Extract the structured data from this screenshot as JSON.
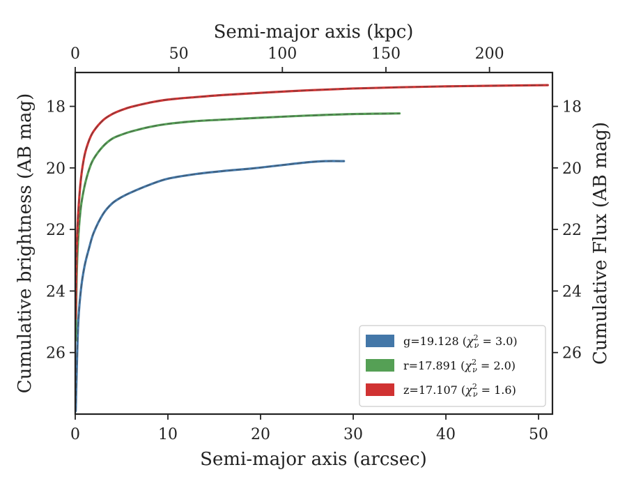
{
  "chart_data": {
    "type": "line",
    "xlabel": "Semi-major axis (arcsec)",
    "x2label": "Semi-major axis (kpc)",
    "ylabel": "Cumulative brightness (AB mag)",
    "y2label": "Cumulative Flux (AB mag)",
    "xlim": [
      0,
      51.5
    ],
    "x_ticks": [
      0,
      10,
      20,
      30,
      40,
      50
    ],
    "x2lim": [
      0,
      230.4
    ],
    "x2_ticks": [
      0,
      50,
      100,
      150,
      200
    ],
    "ylim": [
      16.9,
      28.0
    ],
    "y_inverted": true,
    "y_ticks": [
      18,
      20,
      22,
      24,
      26
    ],
    "grid": false,
    "legend_position": "lower-right",
    "series": [
      {
        "key": "g",
        "name": "g=19.128 (χ²ν = 3.0)",
        "legend_main": "g=19.128 (",
        "legend_sym": "χ",
        "legend_sup": "2",
        "legend_sub": "ν",
        "legend_tail": " = 3.0)",
        "color": "#4377a8",
        "x": [
          0.05,
          0.3,
          0.6,
          1.0,
          1.5,
          2.0,
          3.0,
          4.0,
          5.0,
          6.0,
          8.0,
          10.0,
          13.0,
          16.0,
          19.0,
          22.0,
          25.0,
          27.0,
          29.0
        ],
        "y": [
          27.9,
          25.2,
          24.0,
          23.2,
          22.6,
          22.1,
          21.5,
          21.15,
          20.95,
          20.8,
          20.55,
          20.35,
          20.2,
          20.1,
          20.02,
          19.92,
          19.82,
          19.78,
          19.78
        ]
      },
      {
        "key": "r",
        "name": "r=17.891 (χ²ν = 2.0)",
        "legend_main": "r=17.891 (",
        "legend_sym": "χ",
        "legend_sup": "2",
        "legend_sub": "ν",
        "legend_tail": " = 2.0)",
        "color": "#55a055",
        "x": [
          0.05,
          0.15,
          0.3,
          0.6,
          1.0,
          1.5,
          2.0,
          3.0,
          4.0,
          5.0,
          6.0,
          8.0,
          10.0,
          13.0,
          16.0,
          20.0,
          25.0,
          30.0,
          35.0
        ],
        "y": [
          25.6,
          23.6,
          22.4,
          21.3,
          20.6,
          20.05,
          19.7,
          19.3,
          19.05,
          18.92,
          18.82,
          18.67,
          18.57,
          18.48,
          18.43,
          18.37,
          18.3,
          18.25,
          18.23
        ]
      },
      {
        "key": "z",
        "name": "z=17.107 (χ²ν = 1.6)",
        "legend_main": "z=17.107 (",
        "legend_sym": "χ",
        "legend_sup": "2",
        "legend_sub": "ν",
        "legend_tail": " = 1.6)",
        "color": "#d03232",
        "x": [
          0.05,
          0.15,
          0.3,
          0.6,
          1.0,
          1.5,
          2.0,
          3.0,
          4.0,
          5.0,
          6.0,
          8.0,
          10.0,
          13.0,
          16.0,
          20.0,
          25.0,
          30.0,
          35.0,
          40.0,
          45.0,
          51.0
        ],
        "y": [
          24.9,
          22.8,
          21.6,
          20.4,
          19.6,
          19.1,
          18.8,
          18.45,
          18.25,
          18.12,
          18.02,
          17.88,
          17.78,
          17.7,
          17.63,
          17.56,
          17.48,
          17.42,
          17.38,
          17.35,
          17.33,
          17.31
        ]
      }
    ]
  }
}
